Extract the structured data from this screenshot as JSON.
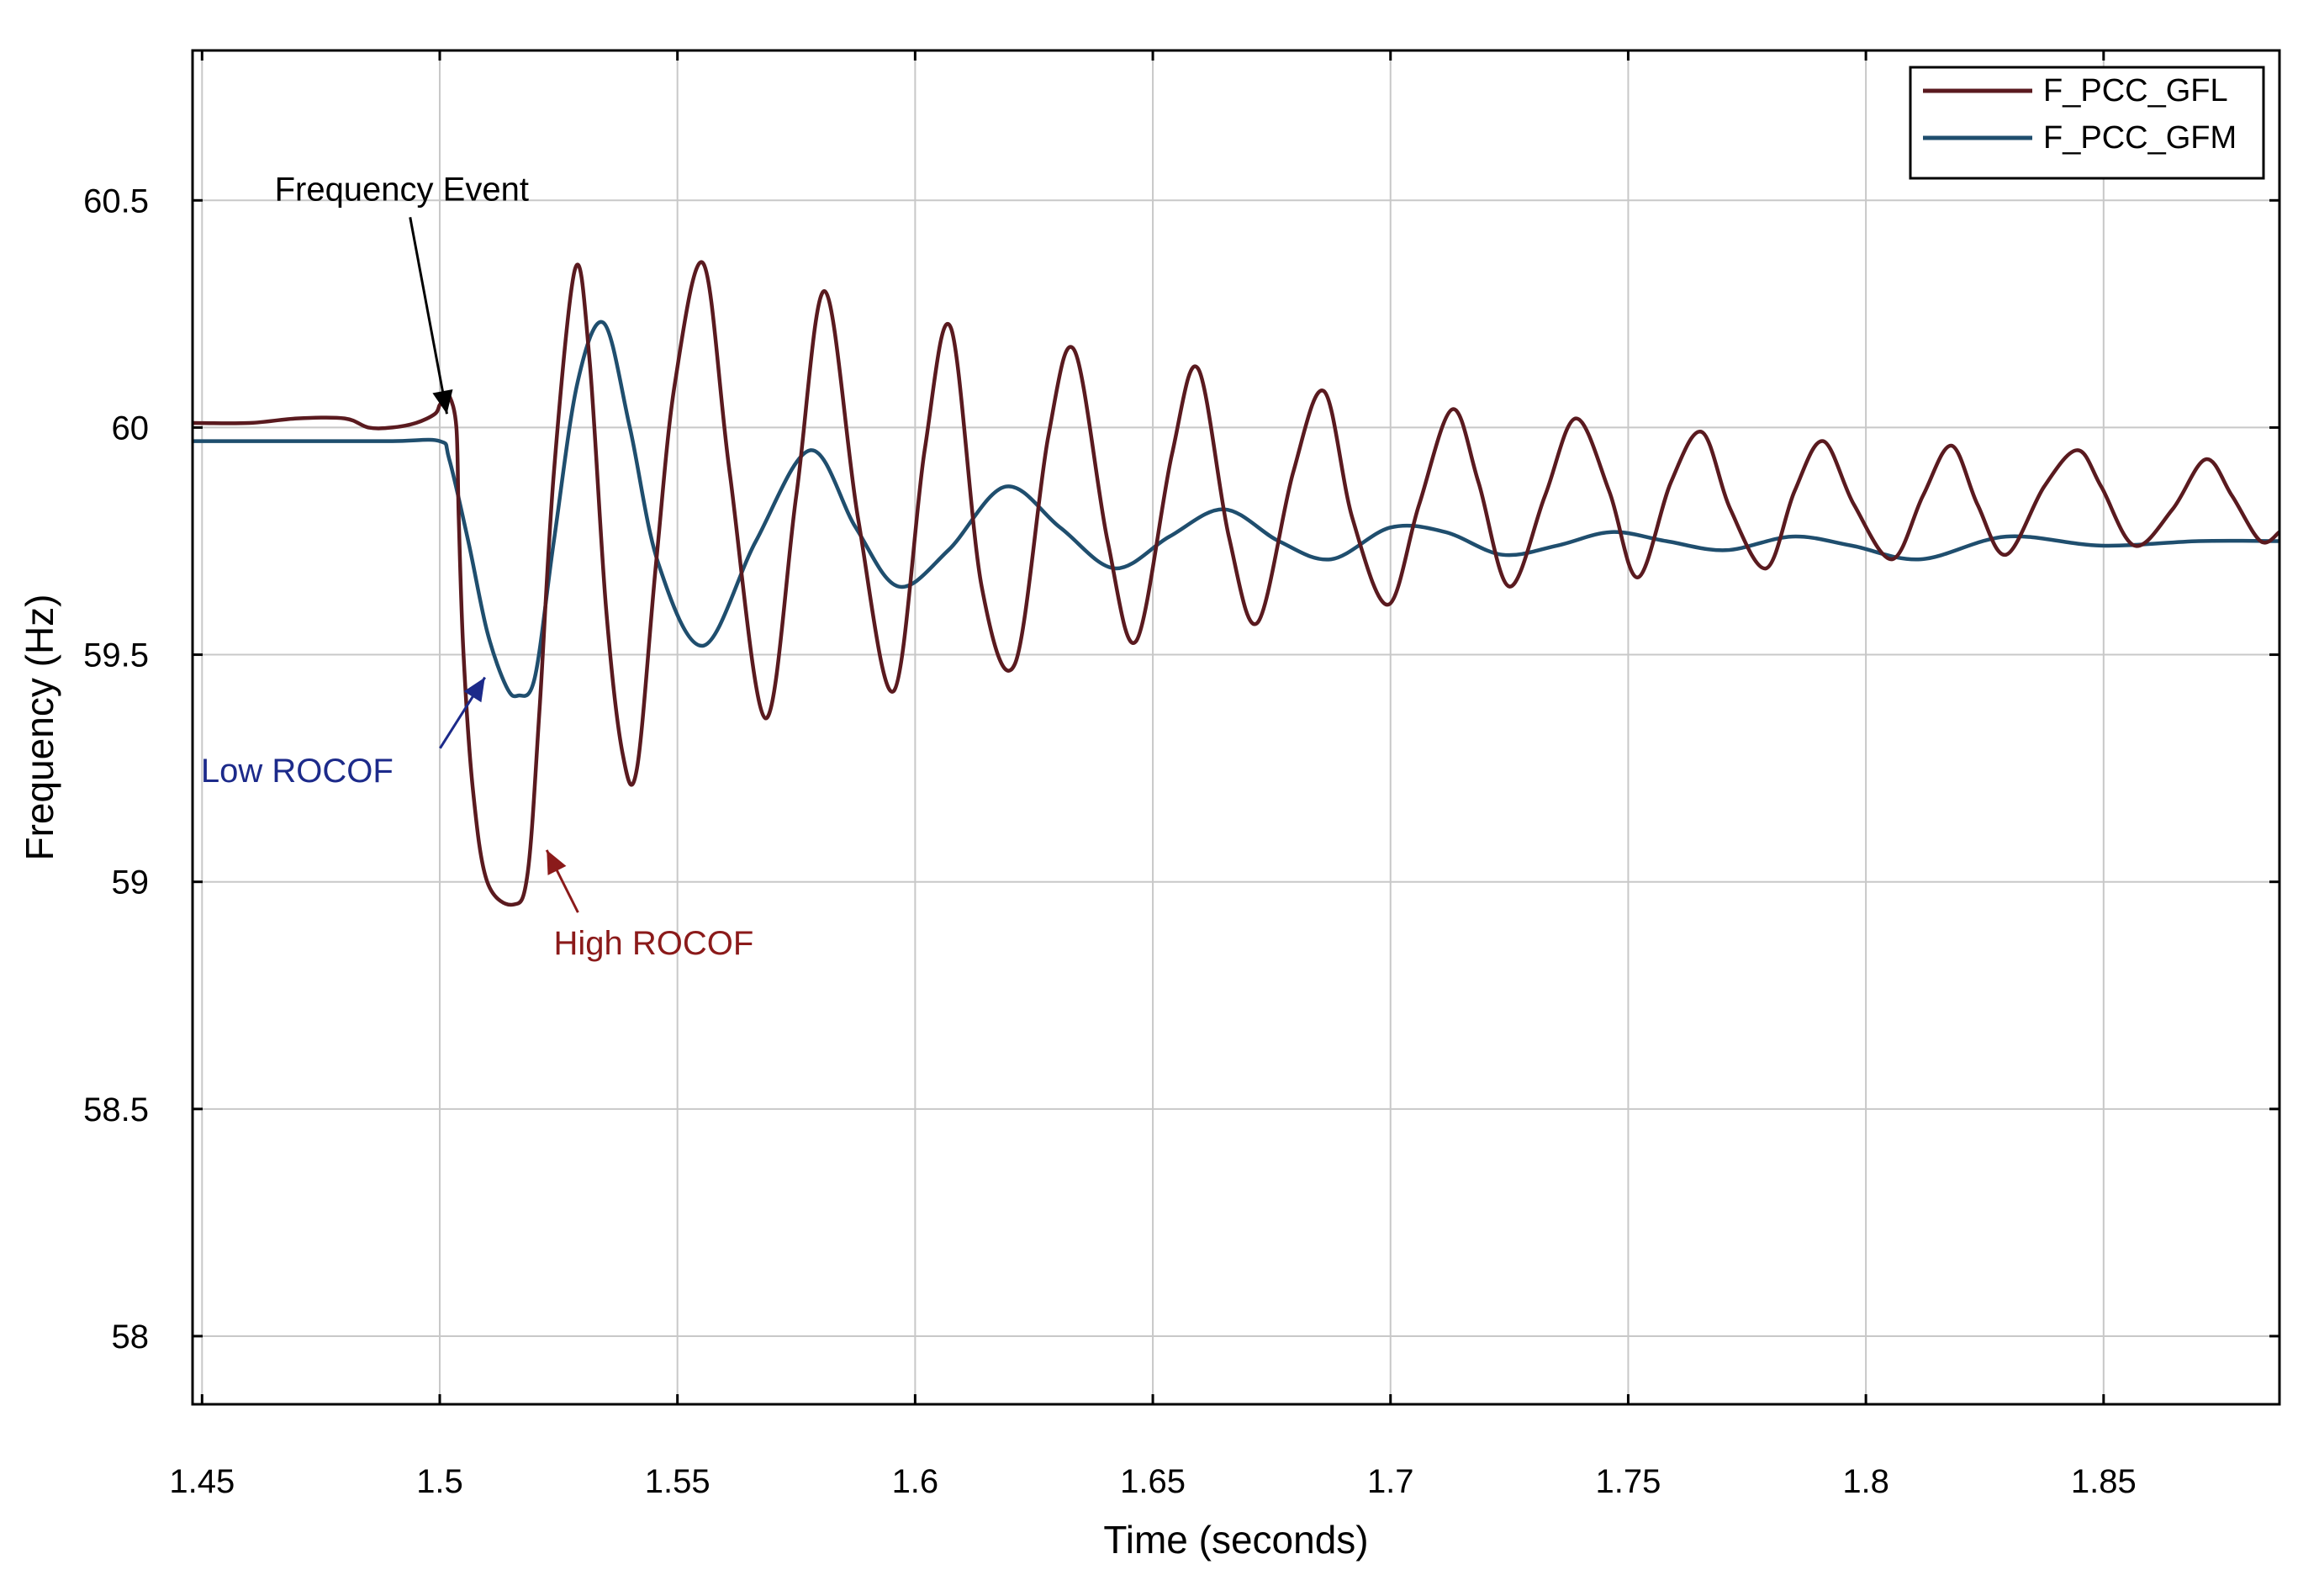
{
  "chart_data": {
    "type": "line",
    "xlabel": "Time (seconds)",
    "ylabel": "Frequency (Hz)",
    "xlim": [
      1.448,
      1.887
    ],
    "ylim": [
      57.85,
      60.83
    ],
    "xticks": [
      1.45,
      1.5,
      1.55,
      1.6,
      1.65,
      1.7,
      1.75,
      1.8,
      1.85
    ],
    "xtick_labels": [
      "1.45",
      "1.5",
      "1.55",
      "1.6",
      "1.65",
      "1.7",
      "1.75",
      "1.8",
      "1.85"
    ],
    "yticks": [
      58,
      58.5,
      59,
      59.5,
      60,
      60.5
    ],
    "ytick_labels": [
      "58",
      "58.5",
      "59",
      "59.5",
      "60",
      "60.5"
    ],
    "grid": true,
    "legend_position": "top-right",
    "series": [
      {
        "name": "F_PCC_GFL",
        "color": "#5a1a1f",
        "x": [
          1.448,
          1.46,
          1.47,
          1.48,
          1.485,
          1.49,
          1.495,
          1.499,
          1.5,
          1.501,
          1.502,
          1.5035,
          1.504,
          1.505,
          1.507,
          1.51,
          1.5155,
          1.5185,
          1.521,
          1.524,
          1.5285,
          1.5315,
          1.535,
          1.5385,
          1.5415,
          1.5455,
          1.5495,
          1.5555,
          1.561,
          1.5685,
          1.575,
          1.581,
          1.588,
          1.5955,
          1.602,
          1.6075,
          1.614,
          1.621,
          1.628,
          1.6335,
          1.6405,
          1.6465,
          1.654,
          1.6595,
          1.666,
          1.672,
          1.6795,
          1.686,
          1.692,
          1.6995,
          1.706,
          1.713,
          1.7185,
          1.725,
          1.7325,
          1.739,
          1.746,
          1.752,
          1.759,
          1.7655,
          1.7715,
          1.779,
          1.785,
          1.791,
          1.7975,
          1.8055,
          1.812,
          1.818,
          1.8235,
          1.8295,
          1.8375,
          1.8445,
          1.8495,
          1.8565,
          1.8645,
          1.8715,
          1.877,
          1.883,
          1.887
        ],
        "y": [
          60.01,
          60.01,
          60.02,
          60.02,
          60.0,
          60.0,
          60.01,
          60.03,
          60.05,
          60.06,
          60.07,
          60.0,
          59.8,
          59.5,
          59.2,
          59.0,
          58.95,
          59.02,
          59.38,
          59.9,
          60.35,
          60.15,
          59.6,
          59.28,
          59.25,
          59.7,
          60.1,
          60.36,
          59.9,
          59.36,
          59.85,
          60.3,
          59.8,
          59.42,
          59.95,
          60.22,
          59.65,
          59.48,
          59.98,
          60.17,
          59.75,
          59.53,
          59.94,
          60.13,
          59.76,
          59.57,
          59.9,
          60.08,
          59.8,
          59.61,
          59.83,
          60.04,
          59.88,
          59.65,
          59.85,
          60.02,
          59.86,
          59.67,
          59.88,
          59.99,
          59.82,
          59.69,
          59.86,
          59.97,
          59.83,
          59.71,
          59.85,
          59.96,
          59.83,
          59.72,
          59.87,
          59.95,
          59.87,
          59.74,
          59.82,
          59.93,
          59.85,
          59.75,
          59.77
        ]
      },
      {
        "name": "F_PCC_GFM",
        "color": "#1f4e6e",
        "x": [
          1.448,
          1.47,
          1.49,
          1.5,
          1.502,
          1.506,
          1.51,
          1.514,
          1.5165,
          1.52,
          1.524,
          1.529,
          1.5345,
          1.54,
          1.546,
          1.5555,
          1.5665,
          1.578,
          1.5875,
          1.5965,
          1.607,
          1.619,
          1.6305,
          1.642,
          1.6535,
          1.665,
          1.6765,
          1.6875,
          1.7,
          1.7115,
          1.7235,
          1.735,
          1.7465,
          1.758,
          1.7705,
          1.7845,
          1.797,
          1.8115,
          1.8295,
          1.8495,
          1.87,
          1.887
        ],
        "y": [
          59.97,
          59.97,
          59.97,
          59.97,
          59.93,
          59.75,
          59.55,
          59.43,
          59.41,
          59.45,
          59.75,
          60.1,
          60.23,
          60.0,
          59.7,
          59.52,
          59.75,
          59.95,
          59.78,
          59.65,
          59.73,
          59.87,
          59.78,
          59.69,
          59.76,
          59.82,
          59.75,
          59.71,
          59.78,
          59.77,
          59.72,
          59.74,
          59.77,
          59.75,
          59.73,
          59.76,
          59.74,
          59.71,
          59.76,
          59.74,
          59.75,
          59.75
        ]
      }
    ],
    "annotations": [
      {
        "text": "Frequency Event",
        "color": "#000000",
        "x_data": 1.5015,
        "y_data": 60.03,
        "label_x_data": 1.492,
        "label_y_data": 60.5
      },
      {
        "text": "Low ROCOF",
        "color": "#1c2a8a",
        "x_data": 1.5095,
        "y_data": 59.45,
        "label_x_data": 1.47,
        "label_y_data": 59.22
      },
      {
        "text": "High ROCOF",
        "color": "#8b1a1a",
        "x_data": 1.5225,
        "y_data": 59.07,
        "label_x_data": 1.545,
        "label_y_data": 58.84
      }
    ]
  }
}
